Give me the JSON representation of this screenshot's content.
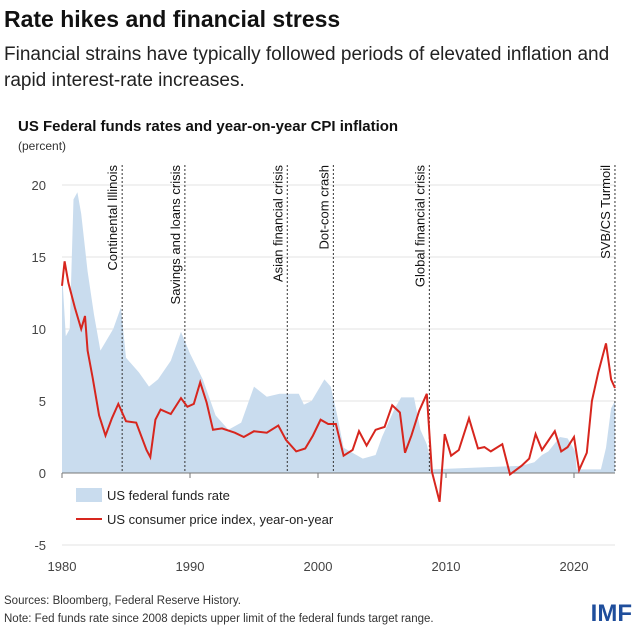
{
  "title": "Rate hikes and financial stress",
  "subtitle": "Financial strains have typically followed periods of elevated inflation and rapid interest-rate increases.",
  "sources": "Sources: Bloomberg, Federal Reserve History.",
  "note": "Note: Fed funds rate since 2008 depicts upper limit of the federal funds target range.",
  "logo": "IMF",
  "chart_data": {
    "type": "area+line",
    "title": "US Federal funds rates and year-on-year CPI inflation",
    "ylabel": "(percent)",
    "xlim": [
      1980,
      2023.2
    ],
    "ylim": [
      -5,
      20
    ],
    "yticks": [
      -5,
      0,
      5,
      10,
      15,
      20
    ],
    "xticks": [
      1980,
      1990,
      2000,
      2010,
      2020
    ],
    "grid": true,
    "legend_position": "bottom-left",
    "colors": {
      "fed": "#c9dcee",
      "cpi": "#d7261e"
    },
    "series": [
      {
        "name": "US federal funds rate",
        "type": "area",
        "points": [
          [
            1980,
            14
          ],
          [
            1980.3,
            9.5
          ],
          [
            1980.6,
            10
          ],
          [
            1980.9,
            19
          ],
          [
            1981.2,
            19.5
          ],
          [
            1981.5,
            18
          ],
          [
            1982,
            14
          ],
          [
            1982.5,
            11
          ],
          [
            1983,
            8.5
          ],
          [
            1984,
            10
          ],
          [
            1984.6,
            11.5
          ],
          [
            1985,
            8
          ],
          [
            1986,
            7
          ],
          [
            1986.8,
            6
          ],
          [
            1987.5,
            6.5
          ],
          [
            1988.5,
            7.8
          ],
          [
            1989.3,
            9.8
          ],
          [
            1990,
            8.3
          ],
          [
            1991,
            6.5
          ],
          [
            1992,
            4
          ],
          [
            1993,
            3
          ],
          [
            1994,
            3.5
          ],
          [
            1995,
            6
          ],
          [
            1996,
            5.3
          ],
          [
            1997,
            5.5
          ],
          [
            1998.5,
            5.5
          ],
          [
            1998.9,
            4.75
          ],
          [
            1999.5,
            5
          ],
          [
            2000.5,
            6.5
          ],
          [
            2001,
            6
          ],
          [
            2001.5,
            4
          ],
          [
            2002,
            1.75
          ],
          [
            2003,
            1.25
          ],
          [
            2003.5,
            1
          ],
          [
            2004.5,
            1.25
          ],
          [
            2005,
            2.5
          ],
          [
            2006,
            4.5
          ],
          [
            2006.5,
            5.25
          ],
          [
            2007.5,
            5.25
          ],
          [
            2008,
            3
          ],
          [
            2008.5,
            2
          ],
          [
            2008.95,
            0.25
          ],
          [
            2015.9,
            0.5
          ],
          [
            2016.9,
            0.75
          ],
          [
            2017.5,
            1.25
          ],
          [
            2018,
            1.5
          ],
          [
            2018.9,
            2.5
          ],
          [
            2019.5,
            2.4
          ],
          [
            2020.1,
            1.5
          ],
          [
            2020.2,
            0.25
          ],
          [
            2022.1,
            0.25
          ],
          [
            2022.5,
            1.75
          ],
          [
            2022.9,
            4.5
          ],
          [
            2023.2,
            5
          ]
        ]
      },
      {
        "name": "US consumer price index, year-on-year",
        "type": "line",
        "points": [
          [
            1980,
            13
          ],
          [
            1980.2,
            14.7
          ],
          [
            1980.5,
            13.2
          ],
          [
            1981,
            11.5
          ],
          [
            1981.5,
            10
          ],
          [
            1981.8,
            10.9
          ],
          [
            1982,
            8.5
          ],
          [
            1982.4,
            6.6
          ],
          [
            1982.9,
            4
          ],
          [
            1983.4,
            2.6
          ],
          [
            1983.9,
            3.8
          ],
          [
            1984.4,
            4.8
          ],
          [
            1985,
            3.6
          ],
          [
            1985.8,
            3.5
          ],
          [
            1986.6,
            1.6
          ],
          [
            1986.9,
            1.1
          ],
          [
            1987.3,
            3.7
          ],
          [
            1987.7,
            4.4
          ],
          [
            1988.5,
            4.1
          ],
          [
            1989.3,
            5.2
          ],
          [
            1989.8,
            4.6
          ],
          [
            1990.3,
            4.8
          ],
          [
            1990.8,
            6.3
          ],
          [
            1991.3,
            4.9
          ],
          [
            1991.8,
            3
          ],
          [
            1992.5,
            3.1
          ],
          [
            1993.5,
            2.8
          ],
          [
            1994.2,
            2.5
          ],
          [
            1995,
            2.9
          ],
          [
            1996,
            2.8
          ],
          [
            1996.9,
            3.3
          ],
          [
            1997.5,
            2.3
          ],
          [
            1998.3,
            1.5
          ],
          [
            1999,
            1.7
          ],
          [
            1999.6,
            2.6
          ],
          [
            2000.2,
            3.7
          ],
          [
            2000.8,
            3.4
          ],
          [
            2001.4,
            3.4
          ],
          [
            2002,
            1.2
          ],
          [
            2002.7,
            1.6
          ],
          [
            2003.2,
            2.9
          ],
          [
            2003.8,
            1.9
          ],
          [
            2004.5,
            3
          ],
          [
            2005.2,
            3.2
          ],
          [
            2005.8,
            4.7
          ],
          [
            2006.4,
            4.2
          ],
          [
            2006.8,
            1.4
          ],
          [
            2007.3,
            2.6
          ],
          [
            2007.9,
            4.3
          ],
          [
            2008.5,
            5.5
          ],
          [
            2008.9,
            0.1
          ],
          [
            2009.5,
            -2
          ],
          [
            2009.9,
            2.7
          ],
          [
            2010.4,
            1.2
          ],
          [
            2011,
            1.6
          ],
          [
            2011.8,
            3.8
          ],
          [
            2012.5,
            1.7
          ],
          [
            2013,
            1.8
          ],
          [
            2013.5,
            1.5
          ],
          [
            2014.4,
            2
          ],
          [
            2015,
            -0.1
          ],
          [
            2015.9,
            0.5
          ],
          [
            2016.5,
            1
          ],
          [
            2017,
            2.7
          ],
          [
            2017.5,
            1.6
          ],
          [
            2018.5,
            2.9
          ],
          [
            2019,
            1.5
          ],
          [
            2019.5,
            1.8
          ],
          [
            2020,
            2.5
          ],
          [
            2020.4,
            0.2
          ],
          [
            2021,
            1.4
          ],
          [
            2021.4,
            5
          ],
          [
            2021.9,
            7
          ],
          [
            2022.5,
            9
          ],
          [
            2022.9,
            6.5
          ],
          [
            2023.2,
            5.9
          ]
        ]
      }
    ],
    "events": [
      {
        "label": "Continental Illinois",
        "x": 1984.7
      },
      {
        "label": "Savings and loans crisis",
        "x": 1989.6
      },
      {
        "label": "Asian financial crisis",
        "x": 1997.6
      },
      {
        "label": "Dot-com crash",
        "x": 2001.2
      },
      {
        "label": "Global financial crisis",
        "x": 2008.7
      },
      {
        "label": "SVB/CS Turmoil",
        "x": 2023.2
      }
    ]
  }
}
